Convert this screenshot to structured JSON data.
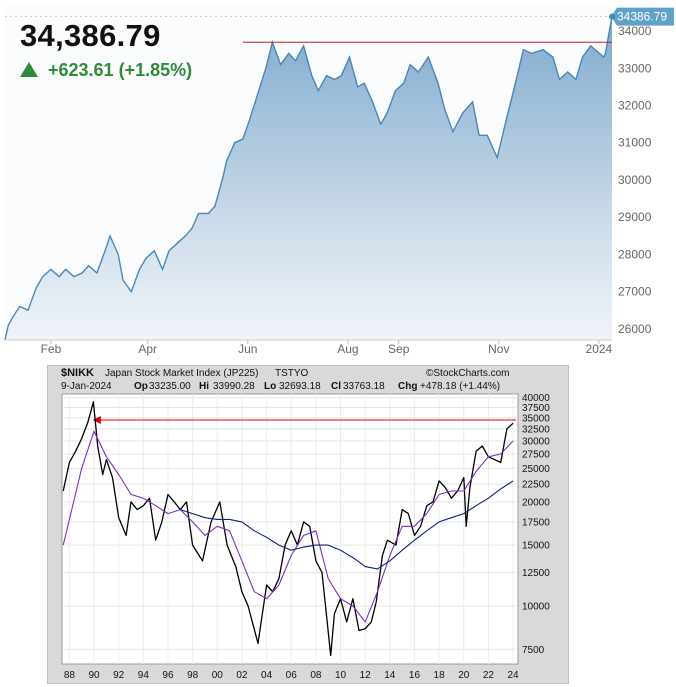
{
  "top_chart": {
    "price": "34,386.79",
    "change": "+623.61 (+1.85%)",
    "change_direction": "up",
    "last_label": "34386.79",
    "accent_color": "#4a86b8",
    "up_color": "#2e8b3a",
    "resistance_color": "#b22222"
  },
  "bottom_chart": {
    "symbol": "$NIKK",
    "name": "Japan Stock Market Index (JP225)",
    "exchange": "TSTYO",
    "brand": "©StockCharts.com",
    "date": "9-Jan-2024",
    "open_label": "Op",
    "open": "33235.00",
    "high_label": "Hi",
    "high": "33990.28",
    "low_label": "Lo",
    "low": "32693.18",
    "close_label": "Cl",
    "close": "33763.18",
    "chg_label": "Chg",
    "chg": "+478.18 (+1.44%)"
  },
  "chart_data": [
    {
      "type": "area",
      "title": "",
      "xlabel": "",
      "ylabel": "",
      "x_ticks": [
        "Feb",
        "Apr",
        "Jun",
        "Aug",
        "Sep",
        "Nov",
        "2024"
      ],
      "y_ticks": [
        26000,
        27000,
        28000,
        29000,
        30000,
        31000,
        32000,
        33000,
        34000
      ],
      "ylim": [
        25700,
        34700
      ],
      "resistance_level": 33700,
      "last_value": 34386.79,
      "grid": false,
      "series": [
        {
          "x": [
            "2023-01-04",
            "2023-01-06",
            "2023-01-10",
            "2023-01-13",
            "2023-01-18",
            "2023-01-23",
            "2023-01-27",
            "2023-02-01",
            "2023-02-06",
            "2023-02-10",
            "2023-02-15",
            "2023-02-20",
            "2023-02-24",
            "2023-03-01",
            "2023-03-06",
            "2023-03-09",
            "2023-03-14",
            "2023-03-17",
            "2023-03-22",
            "2023-03-27",
            "2023-03-31",
            "2023-04-05",
            "2023-04-10",
            "2023-04-14",
            "2023-04-19",
            "2023-04-24",
            "2023-04-28",
            "2023-05-02",
            "2023-05-08",
            "2023-05-12",
            "2023-05-17",
            "2023-05-19",
            "2023-05-24",
            "2023-05-29",
            "2023-06-02",
            "2023-06-07",
            "2023-06-12",
            "2023-06-16",
            "2023-06-21",
            "2023-06-26",
            "2023-06-30",
            "2023-07-05",
            "2023-07-10",
            "2023-07-14",
            "2023-07-19",
            "2023-07-24",
            "2023-07-28",
            "2023-08-02",
            "2023-08-07",
            "2023-08-11",
            "2023-08-16",
            "2023-08-21",
            "2023-08-25",
            "2023-08-30",
            "2023-09-04",
            "2023-09-08",
            "2023-09-13",
            "2023-09-19",
            "2023-09-25",
            "2023-09-29",
            "2023-10-04",
            "2023-10-10",
            "2023-10-16",
            "2023-10-20",
            "2023-10-25",
            "2023-10-31",
            "2023-11-06",
            "2023-11-10",
            "2023-11-16",
            "2023-11-21",
            "2023-11-28",
            "2023-12-04",
            "2023-12-08",
            "2023-12-13",
            "2023-12-18",
            "2023-12-22",
            "2023-12-27",
            "2024-01-04",
            "2024-01-05",
            "2024-01-09"
          ],
          "values": [
            25700,
            26100,
            26400,
            26600,
            26500,
            27100,
            27400,
            27600,
            27400,
            27600,
            27400,
            27500,
            27700,
            27500,
            28100,
            28500,
            28000,
            27300,
            27000,
            27600,
            27900,
            28100,
            27600,
            28100,
            28300,
            28500,
            28700,
            29100,
            29100,
            29300,
            30100,
            30500,
            31000,
            31100,
            31600,
            32300,
            33000,
            33700,
            33100,
            33400,
            33200,
            33600,
            32800,
            32400,
            32800,
            32700,
            32800,
            33300,
            32500,
            32600,
            32100,
            31500,
            31800,
            32400,
            32600,
            33100,
            32900,
            33300,
            32600,
            31900,
            31300,
            31800,
            32100,
            31200,
            31200,
            30600,
            31700,
            32400,
            33500,
            33400,
            33500,
            33300,
            32700,
            32900,
            32700,
            33300,
            33600,
            33300,
            33400,
            34400
          ]
        }
      ]
    },
    {
      "type": "line",
      "title": "Japan Stock Market Index (JP225)",
      "xlabel": "",
      "ylabel": "",
      "x_ticks": [
        "88",
        "90",
        "92",
        "94",
        "96",
        "98",
        "00",
        "02",
        "04",
        "06",
        "08",
        "10",
        "12",
        "14",
        "16",
        "18",
        "20",
        "22",
        "24"
      ],
      "y_ticks": [
        7500,
        10000,
        12500,
        15000,
        17500,
        20000,
        22500,
        25000,
        27500,
        30000,
        32500,
        35000,
        37500,
        40000
      ],
      "y_scale": "log",
      "ylim": [
        6800,
        41000
      ],
      "resistance_level": 34500,
      "grid": true,
      "series": [
        {
          "name": "",
          "x": [
            1987.5,
            1988.0,
            1988.5,
            1989.0,
            1989.5,
            1989.95,
            1990.3,
            1990.7,
            1991.0,
            1991.5,
            1992.0,
            1992.6,
            1993.0,
            1993.5,
            1994.0,
            1994.5,
            1995.0,
            1995.5,
            1996.0,
            1996.5,
            1997.0,
            1997.5,
            1998.0,
            1998.8,
            1999.5,
            2000.2,
            2000.8,
            2001.5,
            2002.0,
            2002.5,
            2003.3,
            2004.0,
            2004.5,
            2005.0,
            2005.5,
            2006.0,
            2006.5,
            2007.0,
            2007.5,
            2008.0,
            2008.5,
            2009.2,
            2009.5,
            2010.0,
            2010.5,
            2011.0,
            2011.5,
            2012.0,
            2012.5,
            2012.9,
            2013.4,
            2013.8,
            2014.5,
            2015.0,
            2015.5,
            2016.0,
            2016.5,
            2017.0,
            2017.5,
            2018.0,
            2018.5,
            2019.0,
            2019.5,
            2020.0,
            2020.2,
            2020.5,
            2021.0,
            2021.5,
            2022.0,
            2022.5,
            2023.0,
            2023.5,
            2024.0
          ],
          "values": [
            21500,
            26000,
            28000,
            30500,
            34000,
            38900,
            29000,
            24000,
            26500,
            23500,
            18000,
            16000,
            20000,
            19000,
            19500,
            20500,
            15500,
            17500,
            21000,
            20000,
            19000,
            20000,
            15000,
            13500,
            17500,
            20000,
            15000,
            13000,
            11000,
            10000,
            7800,
            11500,
            11000,
            12000,
            15000,
            16500,
            15000,
            17500,
            17000,
            13500,
            12500,
            7200,
            9500,
            10500,
            9000,
            10500,
            8500,
            8600,
            9000,
            10300,
            14000,
            15500,
            15000,
            19000,
            18500,
            16000,
            17000,
            19500,
            20000,
            23000,
            22000,
            20500,
            21500,
            23500,
            17000,
            22000,
            28000,
            29000,
            27000,
            26500,
            26000,
            32500,
            33763
          ]
        },
        {
          "name": "",
          "x": [
            1987.5,
            1989.0,
            1990.0,
            1991.0,
            1992.0,
            1993.0,
            1994.0,
            1995.0,
            1996.0,
            1997.0,
            1998.0,
            1999.0,
            2000.0,
            2001.0,
            2002.0,
            2003.0,
            2004.0,
            2005.0,
            2006.0,
            2007.0,
            2008.0,
            2009.0,
            2010.0,
            2011.0,
            2012.0,
            2013.0,
            2014.0,
            2015.0,
            2016.0,
            2017.0,
            2018.0,
            2019.0,
            2020.0,
            2021.0,
            2022.0,
            2023.0,
            2024.0
          ],
          "values": [
            15000,
            25000,
            32000,
            27000,
            24000,
            21000,
            20500,
            19500,
            18500,
            19000,
            17500,
            16000,
            17000,
            16500,
            13500,
            11000,
            10500,
            11500,
            14000,
            16000,
            16500,
            12000,
            10500,
            10000,
            9000,
            11000,
            14000,
            17000,
            17000,
            18500,
            21000,
            21500,
            21500,
            24500,
            27000,
            27500,
            30000
          ]
        },
        {
          "name": "",
          "x": [
            1997.0,
            1998.0,
            1999.0,
            2000.0,
            2001.0,
            2002.0,
            2003.0,
            2004.0,
            2005.0,
            2006.0,
            2007.0,
            2008.0,
            2009.0,
            2010.0,
            2011.0,
            2012.0,
            2013.0,
            2014.0,
            2015.0,
            2016.0,
            2017.0,
            2018.0,
            2019.0,
            2020.0,
            2021.0,
            2022.0,
            2023.0,
            2024.0
          ],
          "values": [
            19000,
            18500,
            18000,
            17800,
            17800,
            17500,
            16500,
            15800,
            15000,
            14500,
            14800,
            15000,
            15000,
            14500,
            13800,
            13000,
            12800,
            13500,
            14500,
            15500,
            16500,
            17500,
            18000,
            18500,
            19500,
            20500,
            21800,
            23000
          ]
        }
      ],
      "series_colors": [
        "#000000",
        "#7b2fbe",
        "#0b1f7a"
      ]
    }
  ]
}
